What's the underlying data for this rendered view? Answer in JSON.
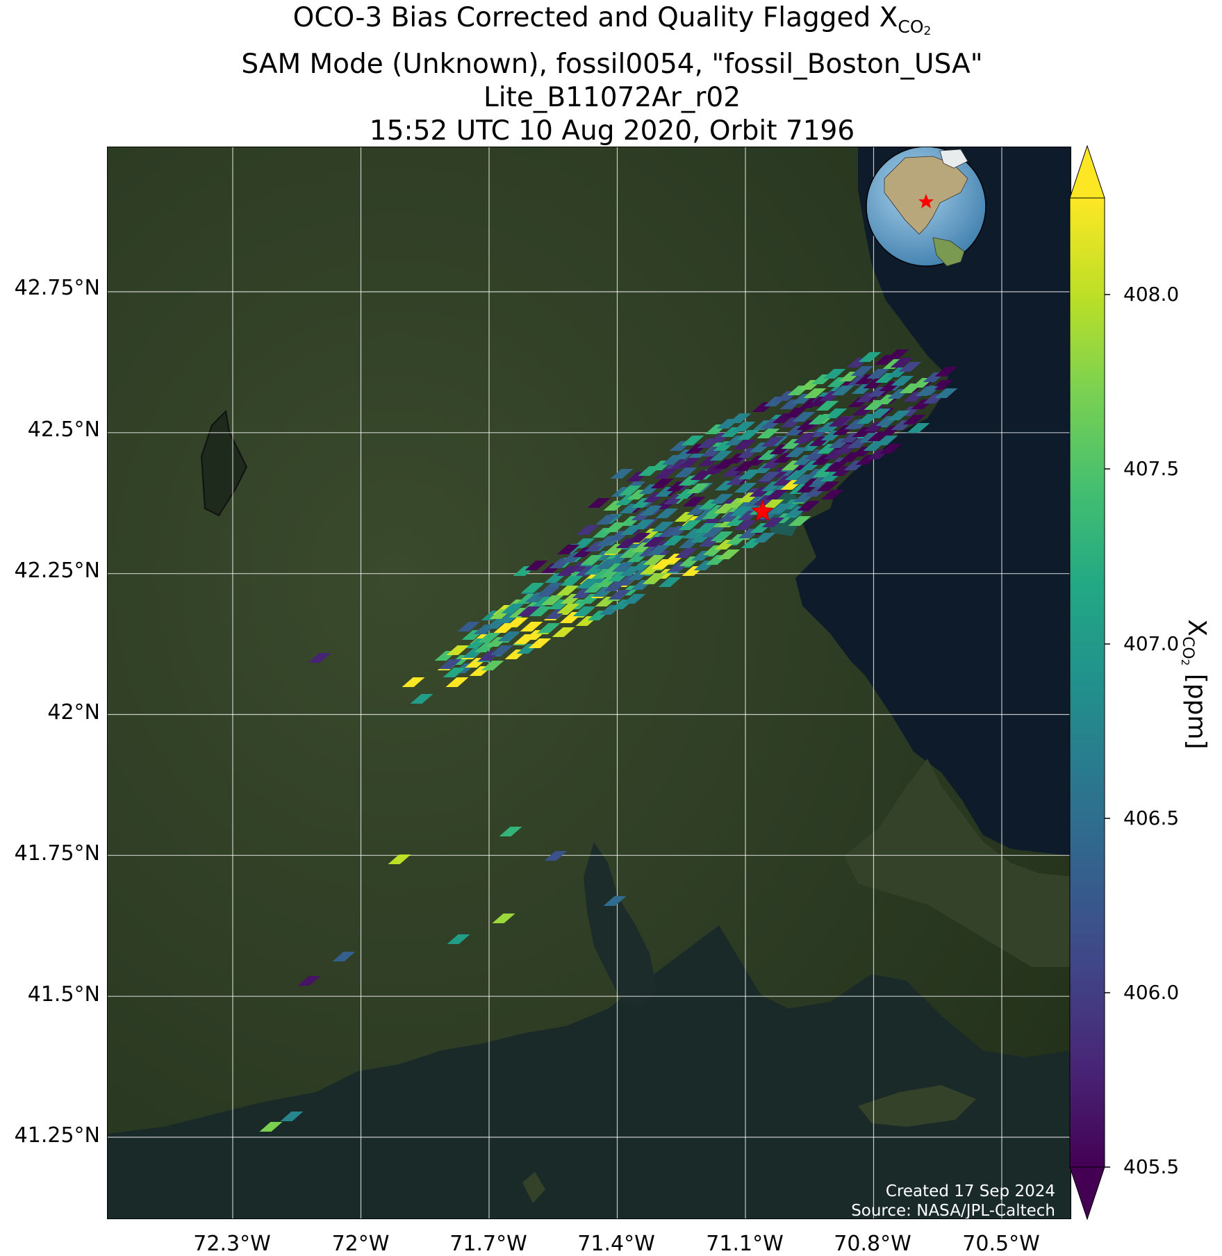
{
  "title": {
    "line1_prefix": "OCO-3 Bias Corrected and Quality Flagged X",
    "line1_sub": "CO",
    "line1_subsub": "2",
    "line2": "SAM Mode (Unknown), fossil0054, \"fossil_Boston_USA\"",
    "line3": "Lite_B11072Ar_r02",
    "line4": "15:52 UTC 10 Aug 2020, Orbit 7196"
  },
  "axes": {
    "lat_labels": [
      "42.75°N",
      "42.5°N",
      "42.25°N",
      "42°N",
      "41.75°N",
      "41.5°N",
      "41.25°N"
    ],
    "lon_labels": [
      "72.3°W",
      "72°W",
      "71.7°W",
      "71.4°W",
      "71.1°W",
      "70.8°W",
      "70.5°W"
    ]
  },
  "colorbar": {
    "label_prefix": "X",
    "label_sub": "CO",
    "label_subsub": "2",
    "label_suffix": " [ppm]",
    "tick_labels": [
      "408.0",
      "407.5",
      "407.0",
      "406.5",
      "406.0",
      "405.5"
    ],
    "range": [
      405.5,
      408.2
    ],
    "colormap": "viridis",
    "extend": "both"
  },
  "credits": {
    "created": "Created 17 Sep 2024",
    "source": "Source: NASA/JPL-Caltech"
  },
  "colors": {
    "target_marker": "#ff0000",
    "land": "#2d3a22",
    "ocean": "#0d1b2a",
    "gridline": "#ffffff"
  },
  "target": {
    "name": "fossil_Boston_USA",
    "lat": 42.36,
    "lon": -71.06,
    "icon": "star-icon"
  }
}
